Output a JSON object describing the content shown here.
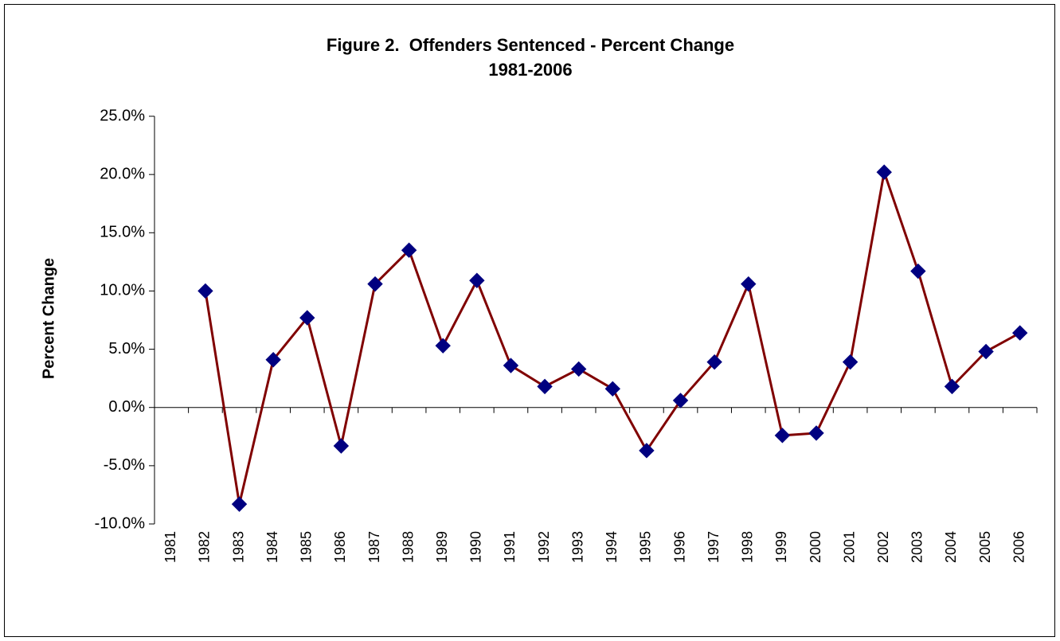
{
  "chart_data": {
    "type": "line",
    "title": "Figure 2.  Offenders Sentenced - Percent Change",
    "subtitle": "1981-2006",
    "y_label": "Percent Change",
    "categories": [
      "1981",
      "1982",
      "1983",
      "1984",
      "1985",
      "1986",
      "1987",
      "1988",
      "1989",
      "1990",
      "1991",
      "1992",
      "1993",
      "1994",
      "1995",
      "1996",
      "1997",
      "1998",
      "1999",
      "2000",
      "2001",
      "2002",
      "2003",
      "2004",
      "2005",
      "2006"
    ],
    "series": [
      {
        "name": "Percent Change",
        "color": "#800000",
        "marker_color": "#000080",
        "values": [
          null,
          10.0,
          -8.3,
          4.1,
          7.7,
          -3.3,
          10.6,
          13.5,
          5.3,
          10.9,
          3.6,
          1.8,
          3.3,
          1.6,
          -3.7,
          0.6,
          3.9,
          10.6,
          -2.4,
          -2.2,
          3.9,
          20.2,
          11.7,
          1.8,
          4.8,
          6.4
        ]
      }
    ],
    "ylim": [
      -10,
      25
    ],
    "yticks": [
      {
        "value": -10,
        "label": "-10.0%"
      },
      {
        "value": -5,
        "label": "-5.0%"
      },
      {
        "value": 0,
        "label": "0.0%"
      },
      {
        "value": 5,
        "label": "5.0%"
      },
      {
        "value": 10,
        "label": "10.0%"
      },
      {
        "value": 15,
        "label": "15.0%"
      },
      {
        "value": 20,
        "label": "20.0%"
      },
      {
        "value": 25,
        "label": "25.0%"
      }
    ],
    "grid": false
  }
}
